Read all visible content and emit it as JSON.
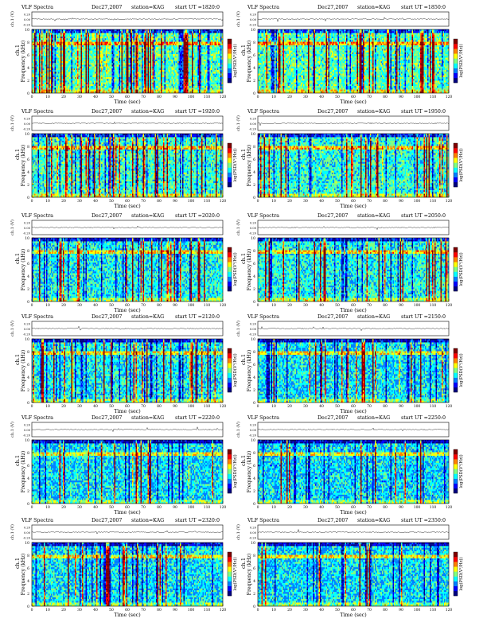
{
  "page": {
    "panel_header": {
      "label": "VLF Spectra",
      "date": "Dec27,2007",
      "station_label": "station=KAG",
      "start_label": "start UT"
    },
    "channel_label": "ch.1 (V)",
    "ylabel_channel": "ch.1",
    "ylabel_freq": "Frequency (kHz)",
    "xlabel": "Time (sec)",
    "colorbar_label": "log(PSD(V²/Hz))",
    "x_ticks": [
      "0",
      "10",
      "20",
      "30",
      "40",
      "50",
      "60",
      "70",
      "80",
      "90",
      "100",
      "110",
      "120"
    ],
    "y_ticks": [
      "0",
      "2",
      "4",
      "6",
      "8",
      "10"
    ],
    "ch_ticks": [
      "0.20",
      "0.00",
      "-0.20"
    ],
    "colormap": [
      "#000080",
      "#0000ff",
      "#0080ff",
      "#00ffff",
      "#80ff80",
      "#ffff00",
      "#ff8000",
      "#ff0000",
      "#800000"
    ]
  },
  "chart_data": [
    {
      "type": "heatmap",
      "station": "KAG",
      "date": "Dec27,2007",
      "start_ut": "1820:0",
      "x": [
        0,
        120
      ],
      "y": [
        0,
        10
      ],
      "xlabel": "Time (sec)",
      "ylabel": "Frequency (kHz)",
      "colorbar": "log(PSD(V²/Hz))",
      "intensity": 0.55
    },
    {
      "type": "heatmap",
      "station": "KAG",
      "date": "Dec27,2007",
      "start_ut": "1850:0",
      "x": [
        0,
        120
      ],
      "y": [
        0,
        10
      ],
      "xlabel": "Time (sec)",
      "ylabel": "Frequency (kHz)",
      "colorbar": "log(PSD(V²/Hz))",
      "intensity": 0.55
    },
    {
      "type": "heatmap",
      "station": "KAG",
      "date": "Dec27,2007",
      "start_ut": "1920:0",
      "x": [
        0,
        120
      ],
      "y": [
        0,
        10
      ],
      "xlabel": "Time (sec)",
      "ylabel": "Frequency (kHz)",
      "colorbar": "log(PSD(V²/Hz))",
      "intensity": 0.45
    },
    {
      "type": "heatmap",
      "station": "KAG",
      "date": "Dec27,2007",
      "start_ut": "1950:0",
      "x": [
        0,
        120
      ],
      "y": [
        0,
        10
      ],
      "xlabel": "Time (sec)",
      "ylabel": "Frequency (kHz)",
      "colorbar": "log(PSD(V²/Hz))",
      "intensity": 0.4
    },
    {
      "type": "heatmap",
      "station": "KAG",
      "date": "Dec27,2007",
      "start_ut": "2020:0",
      "x": [
        0,
        120
      ],
      "y": [
        0,
        10
      ],
      "xlabel": "Time (sec)",
      "ylabel": "Frequency (kHz)",
      "colorbar": "log(PSD(V²/Hz))",
      "intensity": 0.3
    },
    {
      "type": "heatmap",
      "station": "KAG",
      "date": "Dec27,2007",
      "start_ut": "2050:0",
      "x": [
        0,
        120
      ],
      "y": [
        0,
        10
      ],
      "xlabel": "Time (sec)",
      "ylabel": "Frequency (kHz)",
      "colorbar": "log(PSD(V²/Hz))",
      "intensity": 0.35
    },
    {
      "type": "heatmap",
      "station": "KAG",
      "date": "Dec27,2007",
      "start_ut": "2120:0",
      "x": [
        0,
        120
      ],
      "y": [
        0,
        10
      ],
      "xlabel": "Time (sec)",
      "ylabel": "Frequency (kHz)",
      "colorbar": "log(PSD(V²/Hz))",
      "intensity": 0.28
    },
    {
      "type": "heatmap",
      "station": "KAG",
      "date": "Dec27,2007",
      "start_ut": "2150:0",
      "x": [
        0,
        120
      ],
      "y": [
        0,
        10
      ],
      "xlabel": "Time (sec)",
      "ylabel": "Frequency (kHz)",
      "colorbar": "log(PSD(V²/Hz))",
      "intensity": 0.2
    },
    {
      "type": "heatmap",
      "station": "KAG",
      "date": "Dec27,2007",
      "start_ut": "2220:0",
      "x": [
        0,
        120
      ],
      "y": [
        0,
        10
      ],
      "xlabel": "Time (sec)",
      "ylabel": "Frequency (kHz)",
      "colorbar": "log(PSD(V²/Hz))",
      "intensity": 0.18
    },
    {
      "type": "heatmap",
      "station": "KAG",
      "date": "Dec27,2007",
      "start_ut": "2250:0",
      "x": [
        0,
        120
      ],
      "y": [
        0,
        10
      ],
      "xlabel": "Time (sec)",
      "ylabel": "Frequency (kHz)",
      "colorbar": "log(PSD(V²/Hz))",
      "intensity": 0.15
    },
    {
      "type": "heatmap",
      "station": "KAG",
      "date": "Dec27,2007",
      "start_ut": "2320:0",
      "x": [
        0,
        120
      ],
      "y": [
        0,
        10
      ],
      "xlabel": "Time (sec)",
      "ylabel": "Frequency (kHz)",
      "colorbar": "log(PSD(V²/Hz))",
      "intensity": 0.2
    },
    {
      "type": "heatmap",
      "station": "KAG",
      "date": "Dec27,2007",
      "start_ut": "2350:0",
      "x": [
        0,
        120
      ],
      "y": [
        0,
        10
      ],
      "xlabel": "Time (sec)",
      "ylabel": "Frequency (kHz)",
      "colorbar": "log(PSD(V²/Hz))",
      "intensity": 0.17
    }
  ]
}
